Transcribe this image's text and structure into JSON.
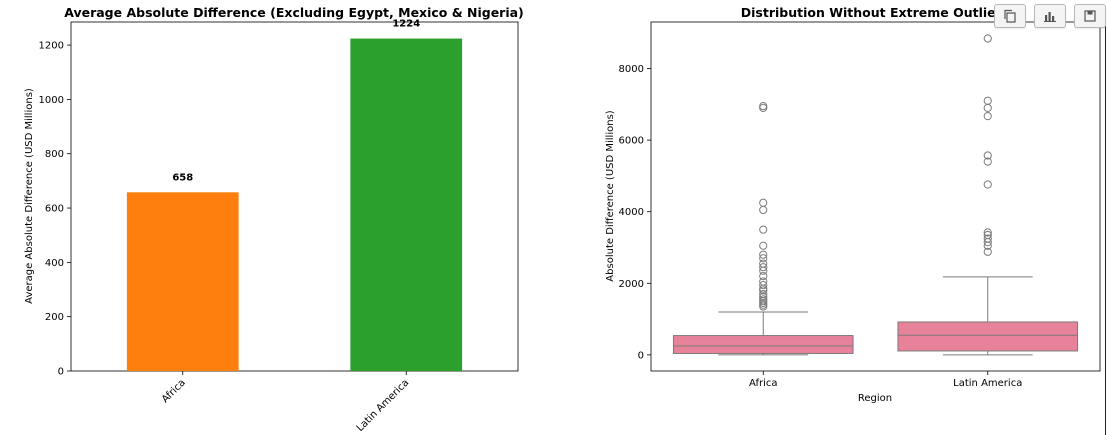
{
  "chart_data": [
    {
      "type": "bar",
      "title": "Average Absolute Difference (Excluding Egypt, Mexico & Nigeria)",
      "xlabel": "",
      "ylabel": "Average Absolute Difference (USD Millions)",
      "categories": [
        "Africa",
        "Latin America"
      ],
      "values": [
        658,
        1224
      ],
      "value_labels": [
        "658",
        "1224"
      ],
      "colors": [
        "#ff7f0e",
        "#2ca02c"
      ],
      "ylim": [
        0,
        1285
      ],
      "yticks": [
        0,
        200,
        400,
        600,
        800,
        1000,
        1200
      ],
      "ytick_labels": [
        "0",
        "200",
        "400",
        "600",
        "800",
        "1000",
        "1200"
      ],
      "grid": false
    },
    {
      "type": "boxplot",
      "title": "Distribution Without Extreme Outliers",
      "xlabel": "Region",
      "ylabel": "Absolute Difference (USD Millions)",
      "categories": [
        "Africa",
        "Latin America"
      ],
      "color": "#e8829a",
      "ylim": [
        -450,
        9300
      ],
      "yticks": [
        0,
        2000,
        4000,
        6000,
        8000
      ],
      "ytick_labels": [
        "0",
        "2000",
        "4000",
        "6000",
        "8000"
      ],
      "grid": false,
      "boxes": [
        {
          "name": "Africa",
          "whisker_low": 0,
          "q1": 40,
          "median": 250,
          "q3": 540,
          "whisker_high": 1200,
          "outliers": [
            1350,
            1400,
            1450,
            1500,
            1550,
            1620,
            1700,
            1800,
            1850,
            1950,
            2050,
            2200,
            2350,
            2450,
            2550,
            2700,
            2800,
            3050,
            3500,
            4050,
            4250,
            6900,
            6950
          ]
        },
        {
          "name": "Latin America",
          "whisker_low": 0,
          "q1": 110,
          "median": 550,
          "q3": 920,
          "whisker_high": 2180,
          "outliers": [
            2880,
            3050,
            3150,
            3250,
            3350,
            3420,
            4760,
            5400,
            5570,
            6670,
            6900,
            7100,
            8840
          ]
        }
      ]
    }
  ],
  "toolbar": {
    "buttons": [
      {
        "icon": "copy-icon"
      },
      {
        "icon": "bar-chart-icon"
      },
      {
        "icon": "save-icon"
      }
    ]
  }
}
